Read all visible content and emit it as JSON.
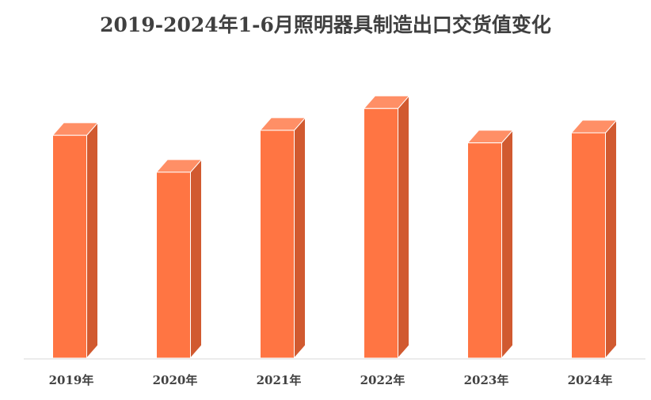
{
  "chart_data": {
    "type": "bar",
    "title": "2019-2024年1-6月照明器具制造出口交货值变化",
    "xlabel": "",
    "ylabel": "",
    "categories": [
      "2019年",
      "2020年",
      "2021年",
      "2022年",
      "2023年",
      "2024年"
    ],
    "values": [
      266,
      222,
      272,
      298,
      257,
      269
    ],
    "ylim": [
      0,
      320
    ],
    "grid": false,
    "legend": "none",
    "style": "3d-column"
  },
  "colors": {
    "bar_front": "#FF7543",
    "bar_top": "#FF8F66",
    "bar_side": "#D15A30",
    "baseline": "#D9D9D9",
    "text": "#404040"
  }
}
